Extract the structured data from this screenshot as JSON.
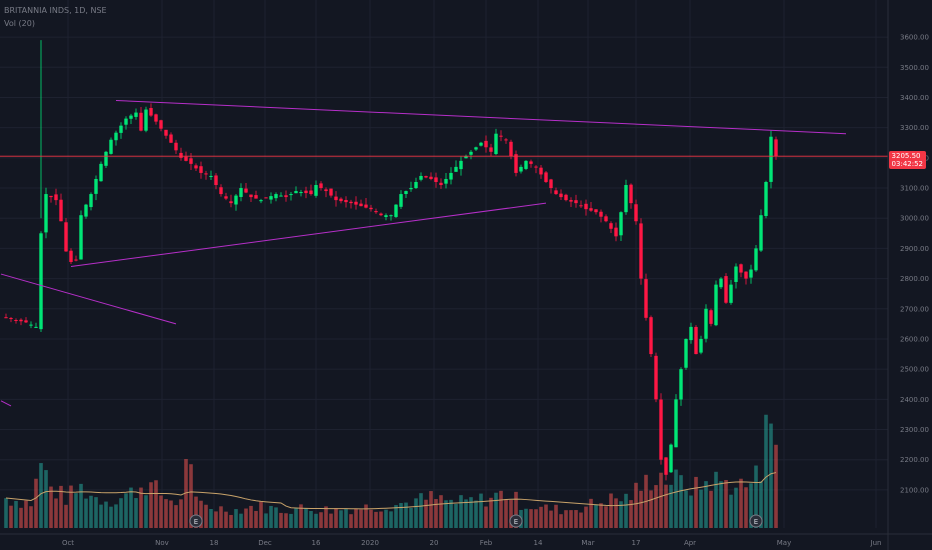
{
  "header": {
    "symbol": "BRITANNIA INDS, 1D, NSE",
    "volume_indicator": "Vol (20)"
  },
  "price_tag": {
    "price": "3205.50",
    "countdown": "03:42:52"
  },
  "colors": {
    "background": "#131722",
    "up": "#26a69a",
    "up_candle": "#00e676",
    "down_candle": "#ff1744",
    "trendline": "#b62fc9",
    "last_price_line": "#f23645",
    "volume_ma": "#c9a36a"
  },
  "chart_data": {
    "type": "candlestick",
    "title": "BRITANNIA INDS, 1D, NSE",
    "x_ticks": [
      "Oct",
      "Nov",
      "18",
      "Dec",
      "16",
      "2020",
      "20",
      "Feb",
      "14",
      "Mar",
      "17",
      "Apr",
      "May",
      "Jun"
    ],
    "y_ticks": [
      "3600.00",
      "3500.00",
      "3400.00",
      "3300.00",
      "3200.00",
      "3100.00",
      "3000.00",
      "2900.00",
      "2800.00",
      "2700.00",
      "2600.00",
      "2500.00",
      "2400.00",
      "2300.00",
      "2200.00",
      "2100.00"
    ],
    "ylim": [
      2050,
      3650
    ],
    "last_price": 3205.5,
    "earnings_markers": [
      "E",
      "E",
      "E"
    ],
    "grid": true,
    "price_control_points": [
      [
        0,
        2670
      ],
      [
        4,
        2655
      ],
      [
        6,
        2640
      ],
      [
        7,
        2950
      ],
      [
        8,
        3080
      ],
      [
        10,
        3060
      ],
      [
        11,
        2990
      ],
      [
        12,
        2890
      ],
      [
        13,
        2855
      ],
      [
        14,
        2860
      ],
      [
        15,
        3010
      ],
      [
        17,
        3080
      ],
      [
        19,
        3180
      ],
      [
        21,
        3260
      ],
      [
        24,
        3330
      ],
      [
        26,
        3350
      ],
      [
        27,
        3290
      ],
      [
        28,
        3360
      ],
      [
        30,
        3320
      ],
      [
        33,
        3250
      ],
      [
        35,
        3200
      ],
      [
        37,
        3180
      ],
      [
        39,
        3150
      ],
      [
        41,
        3140
      ],
      [
        43,
        3080
      ],
      [
        45,
        3050
      ],
      [
        47,
        3100
      ],
      [
        49,
        3070
      ],
      [
        51,
        3060
      ],
      [
        54,
        3080
      ],
      [
        56,
        3070
      ],
      [
        58,
        3090
      ],
      [
        61,
        3080
      ],
      [
        62,
        3110
      ],
      [
        64,
        3090
      ],
      [
        66,
        3060
      ],
      [
        69,
        3050
      ],
      [
        71,
        3040
      ],
      [
        73,
        3030
      ],
      [
        75,
        3010
      ],
      [
        77,
        3010
      ],
      [
        79,
        3080
      ],
      [
        81,
        3100
      ],
      [
        83,
        3140
      ],
      [
        85,
        3130
      ],
      [
        87,
        3110
      ],
      [
        89,
        3150
      ],
      [
        91,
        3190
      ],
      [
        93,
        3220
      ],
      [
        95,
        3250
      ],
      [
        97,
        3220
      ],
      [
        98,
        3280
      ],
      [
        100,
        3260
      ],
      [
        102,
        3150
      ],
      [
        104,
        3190
      ],
      [
        106,
        3170
      ],
      [
        108,
        3120
      ],
      [
        110,
        3080
      ],
      [
        112,
        3060
      ],
      [
        114,
        3050
      ],
      [
        116,
        3030
      ],
      [
        118,
        3020
      ],
      [
        120,
        2990
      ],
      [
        122,
        2940
      ],
      [
        123,
        3020
      ],
      [
        124,
        3110
      ],
      [
        125,
        3050
      ],
      [
        126,
        2990
      ],
      [
        127,
        2800
      ],
      [
        128,
        2670
      ],
      [
        129,
        2550
      ],
      [
        130,
        2400
      ],
      [
        131,
        2200
      ],
      [
        132,
        2150
      ],
      [
        133,
        2250
      ],
      [
        134,
        2400
      ],
      [
        135,
        2500
      ],
      [
        136,
        2600
      ],
      [
        137,
        2640
      ],
      [
        138,
        2550
      ],
      [
        139,
        2600
      ],
      [
        140,
        2700
      ],
      [
        141,
        2650
      ],
      [
        142,
        2780
      ],
      [
        143,
        2800
      ],
      [
        144,
        2720
      ],
      [
        145,
        2780
      ],
      [
        146,
        2840
      ],
      [
        147,
        2820
      ],
      [
        148,
        2800
      ],
      [
        149,
        2830
      ],
      [
        150,
        2900
      ],
      [
        151,
        3010
      ],
      [
        152,
        3120
      ],
      [
        153,
        3270
      ],
      [
        154,
        3205
      ]
    ],
    "volume_control_points": [
      [
        0,
        30
      ],
      [
        5,
        25
      ],
      [
        7,
        65
      ],
      [
        9,
        40
      ],
      [
        12,
        30
      ],
      [
        15,
        40
      ],
      [
        18,
        30
      ],
      [
        22,
        28
      ],
      [
        25,
        35
      ],
      [
        28,
        45
      ],
      [
        32,
        30
      ],
      [
        35,
        25
      ],
      [
        36,
        80
      ],
      [
        38,
        25
      ],
      [
        42,
        20
      ],
      [
        46,
        18
      ],
      [
        50,
        22
      ],
      [
        55,
        18
      ],
      [
        60,
        20
      ],
      [
        65,
        18
      ],
      [
        70,
        20
      ],
      [
        75,
        22
      ],
      [
        80,
        25
      ],
      [
        85,
        30
      ],
      [
        90,
        25
      ],
      [
        95,
        28
      ],
      [
        100,
        35
      ],
      [
        103,
        25
      ],
      [
        107,
        20
      ],
      [
        112,
        18
      ],
      [
        116,
        22
      ],
      [
        120,
        28
      ],
      [
        124,
        30
      ],
      [
        127,
        40
      ],
      [
        130,
        55
      ],
      [
        132,
        50
      ],
      [
        135,
        45
      ],
      [
        138,
        40
      ],
      [
        141,
        48
      ],
      [
        144,
        45
      ],
      [
        148,
        42
      ],
      [
        151,
        55
      ],
      [
        152,
        155
      ],
      [
        153,
        115
      ],
      [
        154,
        70
      ]
    ],
    "trendlines": [
      {
        "name": "upper-resistance",
        "from": [
          22,
          3390
        ],
        "to": [
          168,
          3280
        ]
      },
      {
        "name": "rising-support",
        "from": [
          13,
          2840
        ],
        "to": [
          108,
          3050
        ]
      },
      {
        "name": "descending-left",
        "from": [
          -1,
          2815
        ],
        "to": [
          34,
          2650
        ]
      },
      {
        "name": "left-bottom-stub",
        "from": [
          -1,
          2395
        ],
        "to": [
          1,
          2378
        ]
      }
    ]
  }
}
